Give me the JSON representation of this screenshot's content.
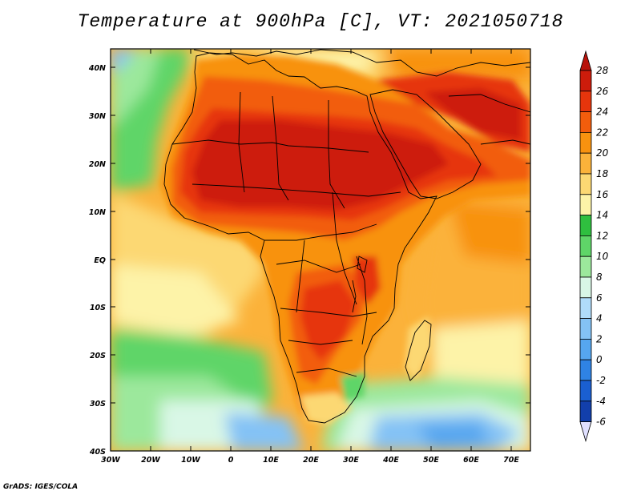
{
  "title": "Temperature at 900hPa [C], VT: 2021050718",
  "credit": "GrADS: IGES/COLA",
  "latitude_labels": [
    "40N",
    "30N",
    "20N",
    "10N",
    "EQ",
    "10S",
    "20S",
    "30S",
    "40S"
  ],
  "longitude_labels": [
    "30W",
    "20W",
    "10W",
    "0",
    "10E",
    "20E",
    "30E",
    "40E",
    "50E",
    "60E",
    "70E"
  ],
  "colorbar": {
    "labels": [
      "28",
      "26",
      "24",
      "22",
      "20",
      "18",
      "16",
      "14",
      "12",
      "10",
      "8",
      "6",
      "4",
      "2",
      "0",
      "-2",
      "-4",
      "-6"
    ],
    "colors": [
      "#cd1c0b",
      "#e6350c",
      "#f25d0c",
      "#f8920f",
      "#fbb23a",
      "#fcd873",
      "#fdf3a8",
      "#2fbf3f",
      "#5fd568",
      "#9ce89c",
      "#d9f7e6",
      "#b0dcfa",
      "#84c2f5",
      "#56a6ef",
      "#2f83e4",
      "#1a5fd1",
      "#123fab",
      "#0c1f78"
    ],
    "top_arrow_color": "#b8130b",
    "bottom_arrow_color": "#e0e0ff"
  }
}
